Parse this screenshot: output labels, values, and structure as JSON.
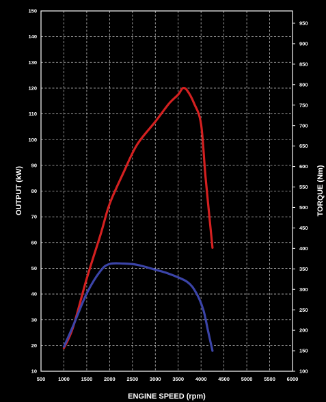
{
  "chart_data": {
    "type": "line",
    "xlabel": "ENGINE SPEED (rpm)",
    "ylabel_left": "OUTPUT (kW)",
    "ylabel_right": "TORQUE (Nm)",
    "xlim": [
      500,
      6000
    ],
    "ylim_left": [
      10,
      150
    ],
    "ylim_right": [
      100,
      980
    ],
    "x_ticks": [
      500,
      1000,
      1500,
      2000,
      2500,
      3000,
      3500,
      4000,
      4500,
      5000,
      5500,
      6000
    ],
    "y_left_ticks": [
      10,
      20,
      30,
      40,
      50,
      60,
      70,
      80,
      90,
      100,
      110,
      120,
      130,
      140,
      150
    ],
    "y_right_ticks": [
      100,
      150,
      200,
      250,
      300,
      350,
      400,
      450,
      500,
      550,
      600,
      650,
      700,
      750,
      800,
      850,
      900,
      950
    ],
    "grid": true,
    "series": [
      {
        "axis": "left",
        "color": "#d42020",
        "points": [
          [
            1000,
            19
          ],
          [
            1200,
            27
          ],
          [
            1500,
            46
          ],
          [
            1800,
            63
          ],
          [
            2000,
            75
          ],
          [
            2300,
            87
          ],
          [
            2600,
            98
          ],
          [
            3000,
            107
          ],
          [
            3300,
            114
          ],
          [
            3500,
            117.5
          ],
          [
            3600,
            120
          ],
          [
            3700,
            119
          ],
          [
            3850,
            114
          ],
          [
            4000,
            106
          ],
          [
            4100,
            85
          ],
          [
            4250,
            58
          ]
        ]
      },
      {
        "axis": "right",
        "color": "#3b44a8",
        "points": [
          [
            1000,
            160
          ],
          [
            1200,
            210
          ],
          [
            1500,
            290
          ],
          [
            1800,
            345
          ],
          [
            2000,
            362
          ],
          [
            2300,
            363
          ],
          [
            2600,
            360
          ],
          [
            3000,
            348
          ],
          [
            3300,
            338
          ],
          [
            3700,
            318
          ],
          [
            3900,
            290
          ],
          [
            4050,
            250
          ],
          [
            4150,
            200
          ],
          [
            4250,
            150
          ]
        ]
      }
    ]
  }
}
